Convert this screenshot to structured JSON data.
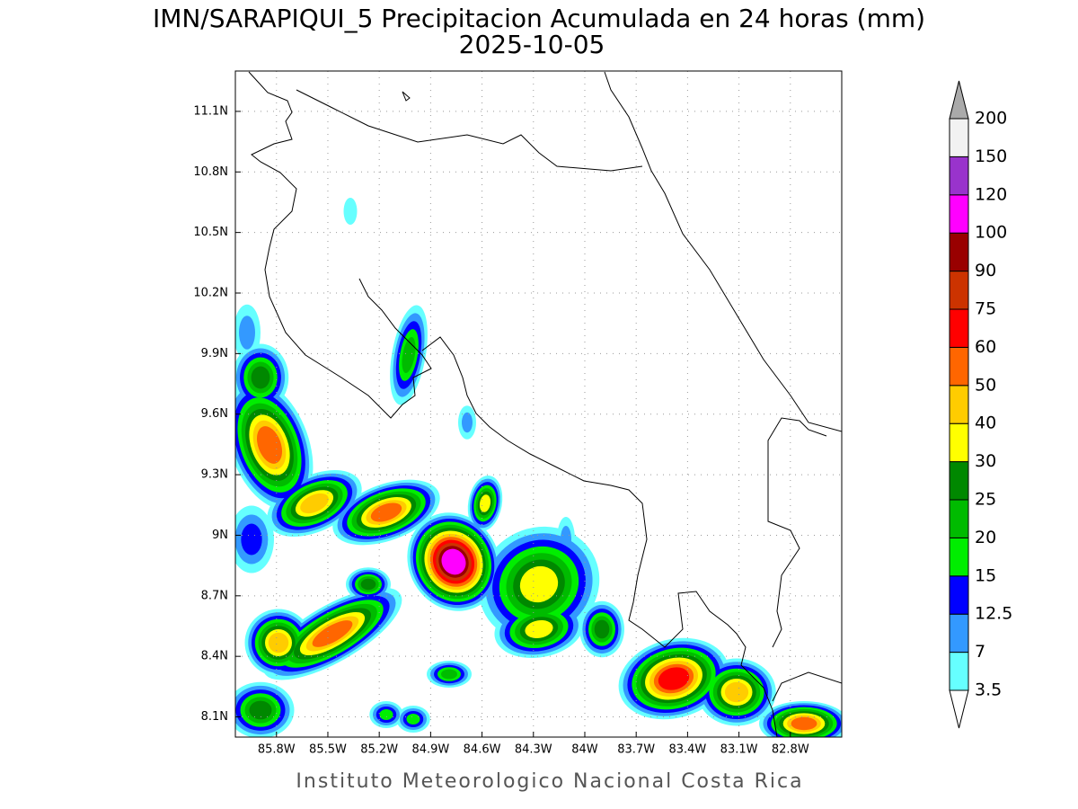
{
  "map": {
    "title": "IMN/SARAPIQUI_5 Precipitacion Acumulada en 24 horas (mm)",
    "subtitle": "2025-10-05",
    "footer": "Instituto Meteorologico Nacional Costa Rica",
    "xlim": [
      -86.04,
      -82.5
    ],
    "ylim": [
      8.0,
      11.3
    ],
    "xticks": [
      {
        "value": -85.8,
        "label": "85.8W"
      },
      {
        "value": -85.5,
        "label": "85.5W"
      },
      {
        "value": -85.2,
        "label": "85.2W"
      },
      {
        "value": -84.9,
        "label": "84.9W"
      },
      {
        "value": -84.6,
        "label": "84.6W"
      },
      {
        "value": -84.3,
        "label": "84.3W"
      },
      {
        "value": -84.0,
        "label": "84W"
      },
      {
        "value": -83.7,
        "label": "83.7W"
      },
      {
        "value": -83.4,
        "label": "83.4W"
      },
      {
        "value": -83.1,
        "label": "83.1W"
      },
      {
        "value": -82.8,
        "label": "82.8W"
      }
    ],
    "yticks": [
      {
        "value": 8.1,
        "label": "8.1N"
      },
      {
        "value": 8.4,
        "label": "8.4N"
      },
      {
        "value": 8.7,
        "label": "8.7N"
      },
      {
        "value": 9.0,
        "label": "9N"
      },
      {
        "value": 9.3,
        "label": "9.3N"
      },
      {
        "value": 9.6,
        "label": "9.6N"
      },
      {
        "value": 9.9,
        "label": "9.9N"
      },
      {
        "value": 10.2,
        "label": "10.2N"
      },
      {
        "value": 10.5,
        "label": "10.5N"
      },
      {
        "value": 10.8,
        "label": "10.8N"
      },
      {
        "value": 11.1,
        "label": "11.1N"
      }
    ],
    "grid": true,
    "colorbar": {
      "levels": [
        3.5,
        7,
        12.5,
        15,
        20,
        25,
        30,
        40,
        50,
        60,
        75,
        90,
        100,
        120,
        150,
        200
      ],
      "colors": [
        "#66ffff",
        "#3399ff",
        "#0000ff",
        "#00ee00",
        "#00bb00",
        "#008800",
        "#ffff00",
        "#ffcc00",
        "#ff6600",
        "#ff0000",
        "#cc3300",
        "#990000",
        "#ff00ff",
        "#9933cc",
        "#f2f2f2"
      ],
      "over_color": "#aaaaaa",
      "under_color": "#ffffff"
    }
  }
}
